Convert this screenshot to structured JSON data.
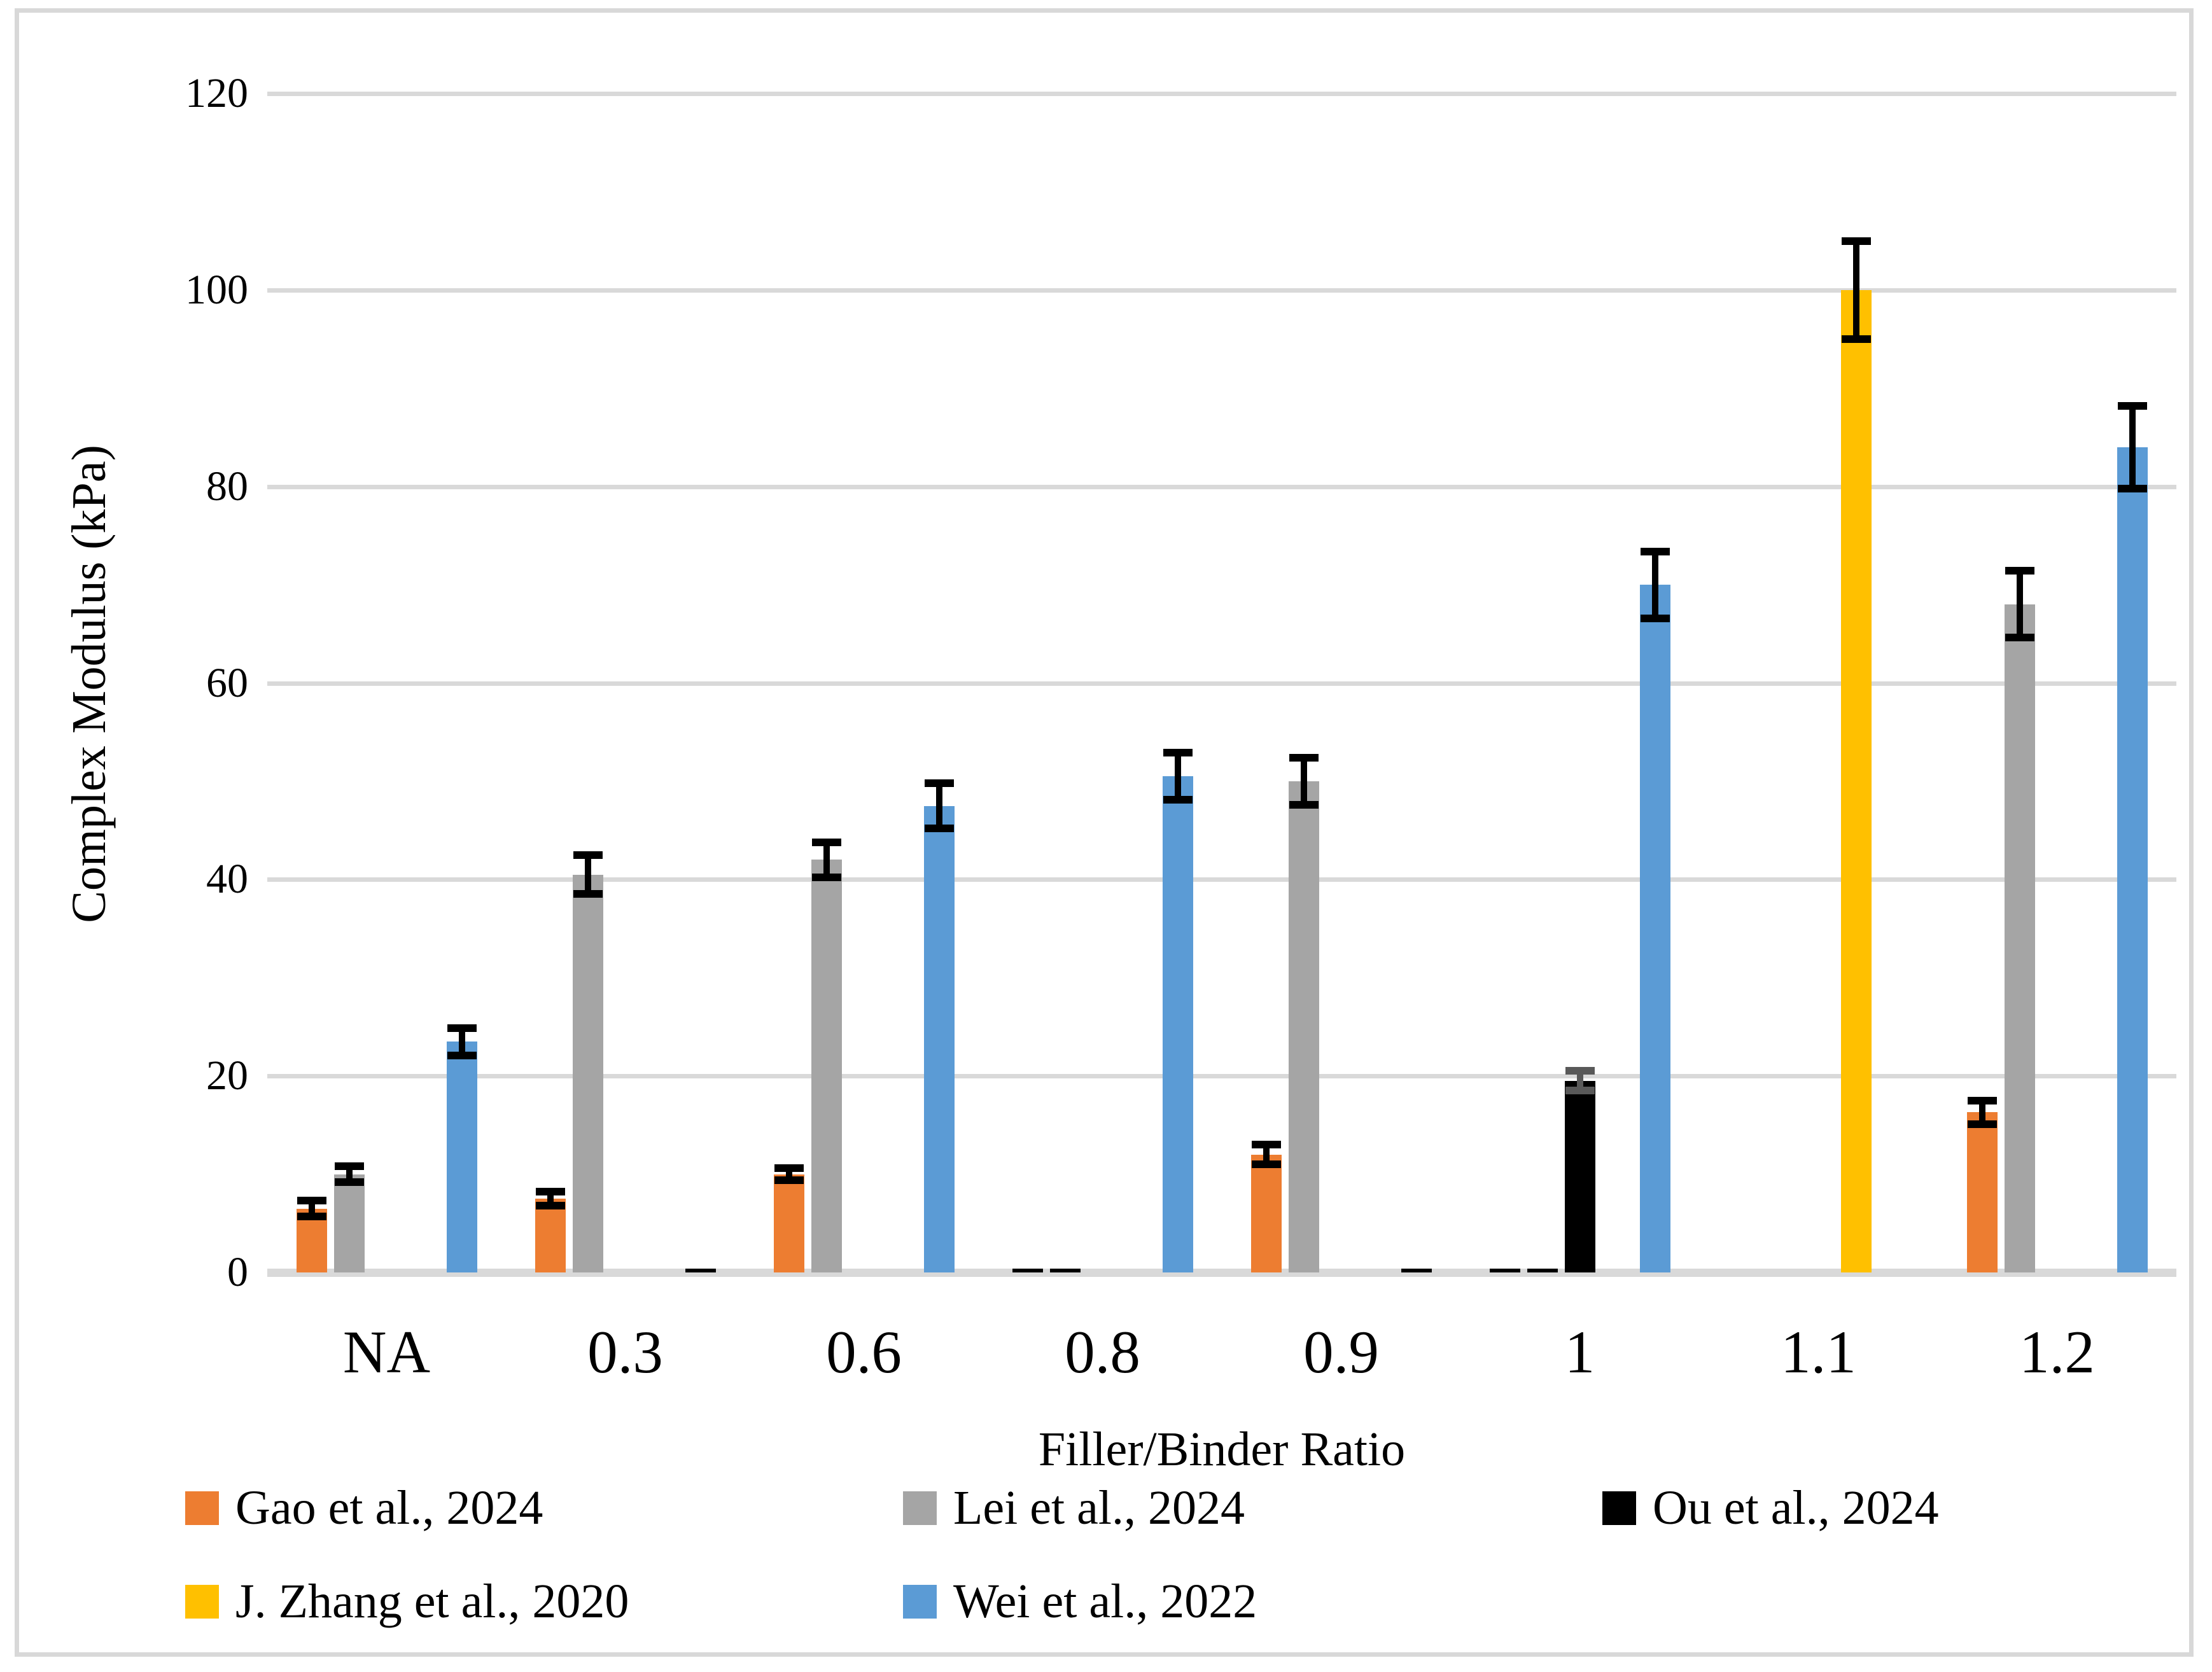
{
  "chart_data": {
    "type": "bar",
    "title": "",
    "xlabel": "Filler/Binder Ratio",
    "ylabel": "Complex Modulus (kPa)",
    "ylim": [
      0,
      120
    ],
    "yticks": [
      0,
      20,
      40,
      60,
      80,
      100,
      120
    ],
    "grid": true,
    "legend_position": "bottom",
    "categories": [
      "NA",
      "0.3",
      "0.6",
      "0.8",
      "0.9",
      "1",
      "1.1",
      "1.2"
    ],
    "series": [
      {
        "name": "Gao et al., 2024",
        "color": "#ED7D31",
        "error_color": "#000000",
        "values": [
          6.5,
          7.5,
          10,
          0.4,
          12,
          0.4,
          null,
          16.3
        ],
        "errors": [
          0.8,
          0.7,
          0.6,
          0,
          1,
          0,
          null,
          1.2
        ]
      },
      {
        "name": "Lei et al., 2024",
        "color": "#A5A5A5",
        "error_color": "#000000",
        "values": [
          10,
          40.5,
          42,
          0.4,
          50,
          0.4,
          null,
          68
        ],
        "errors": [
          0.8,
          2,
          1.8,
          0,
          2.4,
          0,
          null,
          3.4
        ]
      },
      {
        "name": "Ou et al., 2024",
        "color": "#000000",
        "error_color": "#595959",
        "values": [
          null,
          null,
          null,
          null,
          null,
          19.5,
          null,
          null
        ],
        "errors": [
          null,
          null,
          null,
          null,
          null,
          1,
          null,
          null
        ]
      },
      {
        "name": "J. Zhang et al., 2020",
        "color": "#FFC000",
        "error_color": "#000000",
        "values": [
          null,
          null,
          null,
          null,
          null,
          null,
          100,
          null
        ],
        "errors": [
          null,
          null,
          null,
          null,
          null,
          null,
          5,
          null
        ]
      },
      {
        "name": "Wei et al., 2022",
        "color": "#5B9BD5",
        "error_color": "#000000",
        "values": [
          23.5,
          0.4,
          47.5,
          50.5,
          0.4,
          70,
          null,
          84
        ],
        "errors": [
          1.4,
          0,
          2.3,
          2.4,
          0,
          3.4,
          null,
          4.2
        ]
      }
    ],
    "colors": {
      "gridline": "#D9D9D9",
      "baseline": "#D9D9D9",
      "frame": "#D8D8D8",
      "text": "#000000"
    }
  }
}
